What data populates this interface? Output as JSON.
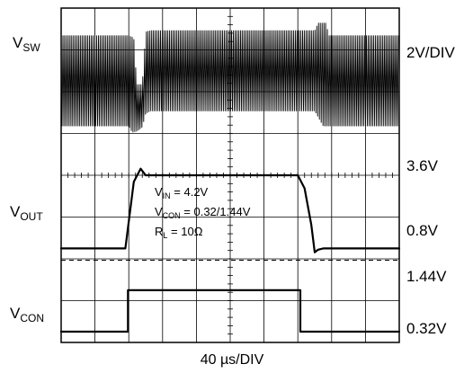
{
  "chart_data": {
    "type": "line",
    "title": "",
    "xlabel": "40 µs/DIV",
    "x_units": "µs",
    "x_div": 40,
    "x_range": [
      0,
      400
    ],
    "grid": true,
    "channels": [
      {
        "name": "VSW",
        "label_main": "V",
        "label_sub": "SW",
        "scale_label": "2V/DIV",
        "ylim": [
          0,
          10
        ],
        "style": "switching",
        "envelope_high": [
          [
            0,
            7.8
          ],
          [
            80,
            7.8
          ],
          [
            86,
            7.6
          ],
          [
            88,
            5.4
          ],
          [
            90,
            3.9
          ],
          [
            96,
            3.9
          ],
          [
            100,
            8.1
          ],
          [
            106,
            8.2
          ],
          [
            300,
            8.2
          ],
          [
            304,
            8.8
          ],
          [
            314,
            8.8
          ],
          [
            316,
            7.8
          ],
          [
            400,
            7.8
          ]
        ],
        "envelope_low": [
          [
            0,
            0.6
          ],
          [
            80,
            0.6
          ],
          [
            84,
            0.1
          ],
          [
            90,
            0.2
          ],
          [
            96,
            0.5
          ],
          [
            100,
            1.6
          ],
          [
            106,
            1.8
          ],
          [
            300,
            1.8
          ],
          [
            310,
            0.6
          ],
          [
            400,
            0.6
          ]
        ]
      },
      {
        "name": "VOUT",
        "label_main": "V",
        "label_sub": "OUT",
        "levels": [
          {
            "label": "3.6V",
            "value": 3.6
          },
          {
            "label": "0.8V",
            "value": 0.8
          }
        ],
        "reference_value": 0.35,
        "points": [
          [
            0,
            0.8
          ],
          [
            76,
            0.8
          ],
          [
            86,
            3.35
          ],
          [
            94,
            3.85
          ],
          [
            100,
            3.6
          ],
          [
            280,
            3.6
          ],
          [
            288,
            3.1
          ],
          [
            296,
            1.7
          ],
          [
            300,
            0.65
          ],
          [
            304,
            0.75
          ],
          [
            310,
            0.8
          ],
          [
            400,
            0.8
          ]
        ]
      },
      {
        "name": "VCON",
        "label_main": "V",
        "label_sub": "CON",
        "levels": [
          {
            "label": "1.44V",
            "value": 1.44
          },
          {
            "label": "0.32V",
            "value": 0.32
          }
        ],
        "points": [
          [
            0,
            0.32
          ],
          [
            79,
            0.32
          ],
          [
            79,
            1.44
          ],
          [
            283,
            1.44
          ],
          [
            283,
            0.32
          ],
          [
            400,
            0.32
          ]
        ]
      }
    ],
    "annotations": [
      {
        "id": "vin",
        "main": "V",
        "sub": "IN",
        "value": " = 4.2V"
      },
      {
        "id": "vcon",
        "main": "V",
        "sub": "CON",
        "value": " = 0.32/1.44V"
      },
      {
        "id": "rl",
        "main": "R",
        "sub": "L",
        "value": " = 10Ω"
      }
    ]
  }
}
